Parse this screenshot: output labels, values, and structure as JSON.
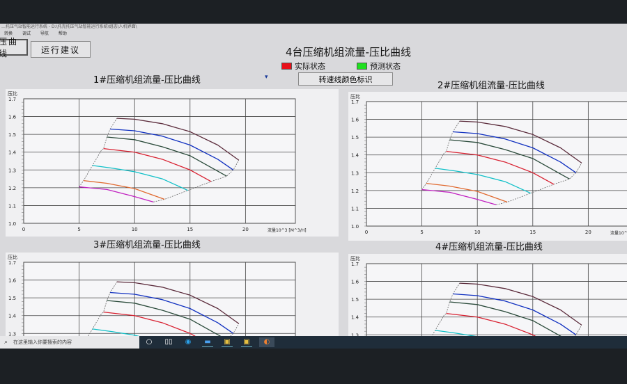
{
  "window": {
    "title": "…托压气站智能运行系统 - D:\\托克托压气站智能运行系统\\组态\\人机界面\\",
    "menu": [
      "转换",
      "调试",
      "导航",
      "帮助"
    ]
  },
  "toolbar": {
    "curve_button": "压曲线",
    "advice_button": "运行建议"
  },
  "main_title": "4台压缩机组流量-压比曲线",
  "legend": [
    {
      "label": "实际状态",
      "color": "#e8101a"
    },
    {
      "label": "预测状态",
      "color": "#1fe01f"
    }
  ],
  "color_button": "转速线颜色标识",
  "cursor_icon": "pointer-icon",
  "charts": [
    {
      "title": "1#压缩机组流量-压比曲线",
      "ylabel": "压比",
      "xlabel": "流量10^3  [M^3/H]"
    },
    {
      "title": "2#压缩机组流量-压比曲线",
      "ylabel": "压比",
      "xlabel": "流量10^"
    },
    {
      "title": "3#压缩机组流量-压比曲线",
      "ylabel": "压比",
      "xlabel": ""
    },
    {
      "title": "4#压缩机组流量-压比曲线",
      "ylabel": "压比",
      "xlabel": ""
    }
  ],
  "chart_data": {
    "type": "line",
    "xlim": [
      0,
      24.5
    ],
    "ylim": [
      1.0,
      1.7
    ],
    "xticks": [
      "0",
      "5",
      "10",
      "15",
      "20"
    ],
    "yticks": [
      "1.0",
      "1.1",
      "1.2",
      "1.3",
      "1.4",
      "1.5",
      "1.6",
      "1.7"
    ],
    "grid": true,
    "series": [
      {
        "color": "#5a2a3a",
        "points": [
          [
            8.4,
            1.59
          ],
          [
            10,
            1.585
          ],
          [
            12.5,
            1.56
          ],
          [
            15,
            1.515
          ],
          [
            17.5,
            1.44
          ],
          [
            19.4,
            1.355
          ]
        ]
      },
      {
        "color": "#1030c0",
        "points": [
          [
            7.8,
            1.53
          ],
          [
            10,
            1.52
          ],
          [
            12.5,
            1.49
          ],
          [
            15,
            1.44
          ],
          [
            17.5,
            1.36
          ],
          [
            18.9,
            1.3
          ]
        ]
      },
      {
        "color": "#2a4a3a",
        "points": [
          [
            7.5,
            1.485
          ],
          [
            10,
            1.47
          ],
          [
            12.5,
            1.43
          ],
          [
            15,
            1.38
          ],
          [
            18.3,
            1.265
          ]
        ]
      },
      {
        "color": "#d82030",
        "points": [
          [
            7.2,
            1.42
          ],
          [
            10,
            1.4
          ],
          [
            12.5,
            1.36
          ],
          [
            15,
            1.3
          ],
          [
            16.9,
            1.235
          ]
        ]
      },
      {
        "color": "#10c0c8",
        "points": [
          [
            6.2,
            1.325
          ],
          [
            8,
            1.31
          ],
          [
            10,
            1.29
          ],
          [
            12.5,
            1.25
          ],
          [
            14.8,
            1.185
          ]
        ]
      },
      {
        "color": "#e06a30",
        "points": [
          [
            5.4,
            1.24
          ],
          [
            7.5,
            1.225
          ],
          [
            10,
            1.195
          ],
          [
            12.7,
            1.135
          ]
        ]
      },
      {
        "color": "#c020c0",
        "points": [
          [
            5,
            1.205
          ],
          [
            7.5,
            1.19
          ],
          [
            10,
            1.15
          ],
          [
            11.7,
            1.12
          ]
        ]
      }
    ],
    "surge_line": [
      [
        5,
        1.205
      ],
      [
        5.4,
        1.24
      ],
      [
        6.2,
        1.325
      ],
      [
        7,
        1.41
      ],
      [
        7.2,
        1.42
      ],
      [
        7.5,
        1.485
      ],
      [
        7.8,
        1.53
      ],
      [
        8.4,
        1.59
      ]
    ],
    "choke_line": [
      [
        11.7,
        1.12
      ],
      [
        12.7,
        1.135
      ],
      [
        14.8,
        1.185
      ],
      [
        16.9,
        1.235
      ],
      [
        18.3,
        1.265
      ],
      [
        18.9,
        1.3
      ],
      [
        19.4,
        1.355
      ]
    ]
  },
  "taskbar": {
    "search_placeholder": "在这里输入你要搜索的内容",
    "icons": [
      "cortana-icon",
      "task-view-icon",
      "edge-icon",
      "app-window-icon",
      "folder-app-icon",
      "folder-app-icon-2",
      "app-icon"
    ]
  }
}
